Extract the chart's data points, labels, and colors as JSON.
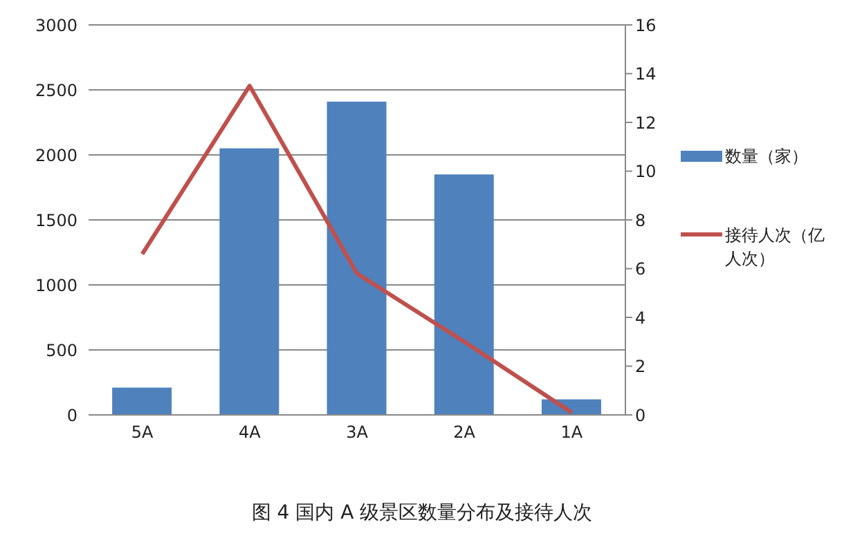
{
  "chart_data": {
    "type": "bar",
    "title": "图 4  国内 A 级景区数量分布及接待人次",
    "categories": [
      "5A",
      "4A",
      "3A",
      "2A",
      "1A"
    ],
    "series": [
      {
        "name": "数量（家）",
        "color": "#4f81bd",
        "values": [
          210,
          2050,
          2410,
          1850,
          120
        ]
      },
      {
        "name": "接待人次（亿人次）",
        "type": "line",
        "axis": "y2",
        "color": "#c0504d",
        "values": [
          6.6,
          13.5,
          5.8,
          3.0,
          0.1
        ]
      }
    ],
    "ylim": [
      0,
      3000
    ],
    "yticks": [
      0,
      500,
      1000,
      1500,
      2000,
      2500,
      3000
    ],
    "y2lim": [
      0,
      16
    ],
    "y2ticks": [
      0,
      2,
      4,
      6,
      8,
      10,
      12,
      14,
      16
    ],
    "grid": "y",
    "legend": "right",
    "marker": "none"
  }
}
